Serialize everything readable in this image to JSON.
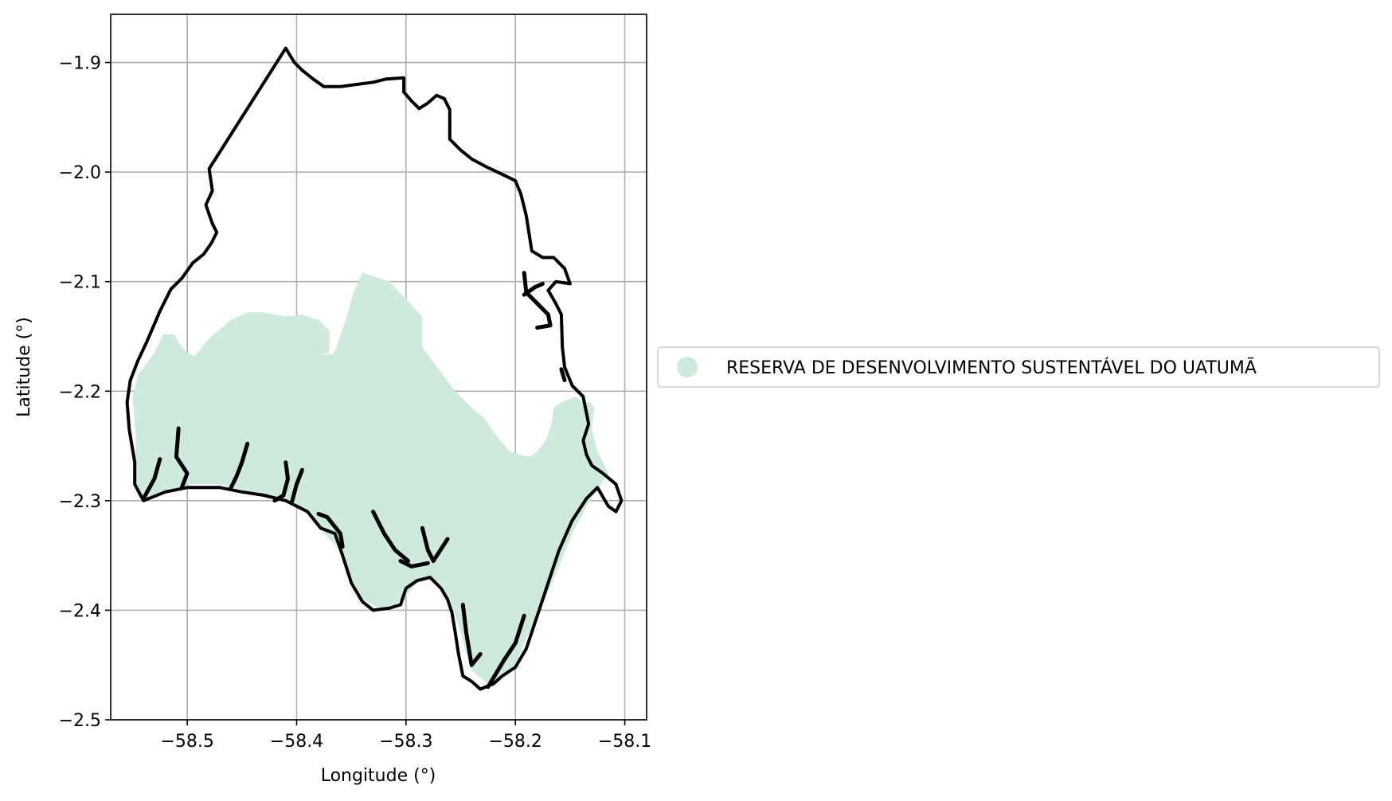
{
  "chart_data": {
    "type": "map",
    "xlabel": "Longitude (°)",
    "ylabel": "Latitude (°)",
    "xlim": [
      -58.57,
      -58.08
    ],
    "ylim": [
      -2.5,
      -1.856
    ],
    "xticks": [
      -58.5,
      -58.4,
      -58.3,
      -58.2,
      -58.1
    ],
    "xtick_labels": [
      "−58.5",
      "−58.4",
      "−58.3",
      "−58.2",
      "−58.1"
    ],
    "yticks": [
      -1.9,
      -2.0,
      -2.1,
      -2.2,
      -2.3,
      -2.4,
      -2.5
    ],
    "ytick_labels": [
      "−1.9",
      "−2.0",
      "−2.1",
      "−2.2",
      "−2.3",
      "−2.4",
      "−2.5"
    ],
    "grid": true,
    "legend_placement": "outside-right",
    "legend": [
      {
        "label": "RESERVA DE DESENVOLVIMENTO SUSTENTÁVEL DO UATUMÃ",
        "color": "#cfeadc"
      }
    ],
    "colors": {
      "reserve_fill": "#cfeadc",
      "boundary": "#000000",
      "grid": "#b0b0b0"
    },
    "reserve_polygon": [
      [
        -58.545,
        -2.185
      ],
      [
        -58.53,
        -2.165
      ],
      [
        -58.522,
        -2.148
      ],
      [
        -58.512,
        -2.148
      ],
      [
        -58.506,
        -2.158
      ],
      [
        -58.5,
        -2.165
      ],
      [
        -58.493,
        -2.168
      ],
      [
        -58.48,
        -2.152
      ],
      [
        -58.46,
        -2.135
      ],
      [
        -58.445,
        -2.128
      ],
      [
        -58.43,
        -2.128
      ],
      [
        -58.41,
        -2.132
      ],
      [
        -58.395,
        -2.13
      ],
      [
        -58.38,
        -2.135
      ],
      [
        -58.37,
        -2.145
      ],
      [
        -58.37,
        -2.165
      ],
      [
        -58.38,
        -2.167
      ],
      [
        -58.366,
        -2.166
      ],
      [
        -58.355,
        -2.135
      ],
      [
        -58.348,
        -2.11
      ],
      [
        -58.34,
        -2.092
      ],
      [
        -58.33,
        -2.095
      ],
      [
        -58.315,
        -2.1
      ],
      [
        -58.298,
        -2.118
      ],
      [
        -58.285,
        -2.132
      ],
      [
        -58.285,
        -2.16
      ],
      [
        -58.27,
        -2.18
      ],
      [
        -58.255,
        -2.2
      ],
      [
        -58.24,
        -2.215
      ],
      [
        -58.228,
        -2.225
      ],
      [
        -58.218,
        -2.24
      ],
      [
        -58.205,
        -2.255
      ],
      [
        -58.195,
        -2.258
      ],
      [
        -58.187,
        -2.26
      ],
      [
        -58.18,
        -2.255
      ],
      [
        -58.172,
        -2.245
      ],
      [
        -58.167,
        -2.23
      ],
      [
        -58.165,
        -2.215
      ],
      [
        -58.158,
        -2.21
      ],
      [
        -58.145,
        -2.205
      ],
      [
        -58.138,
        -2.21
      ],
      [
        -58.132,
        -2.21
      ],
      [
        -58.128,
        -2.215
      ],
      [
        -58.13,
        -2.235
      ],
      [
        -58.125,
        -2.255
      ],
      [
        -58.115,
        -2.275
      ],
      [
        -58.125,
        -2.29
      ],
      [
        -58.135,
        -2.305
      ],
      [
        -58.148,
        -2.33
      ],
      [
        -58.16,
        -2.36
      ],
      [
        -58.175,
        -2.395
      ],
      [
        -58.19,
        -2.425
      ],
      [
        -58.2,
        -2.45
      ],
      [
        -58.21,
        -2.46
      ],
      [
        -58.22,
        -2.47
      ],
      [
        -58.228,
        -2.465
      ],
      [
        -58.24,
        -2.455
      ],
      [
        -58.245,
        -2.44
      ],
      [
        -58.25,
        -2.42
      ],
      [
        -58.255,
        -2.405
      ],
      [
        -58.26,
        -2.39
      ],
      [
        -58.27,
        -2.375
      ],
      [
        -58.28,
        -2.37
      ],
      [
        -58.29,
        -2.375
      ],
      [
        -58.298,
        -2.385
      ],
      [
        -58.31,
        -2.395
      ],
      [
        -58.325,
        -2.398
      ],
      [
        -58.34,
        -2.39
      ],
      [
        -58.35,
        -2.37
      ],
      [
        -58.36,
        -2.345
      ],
      [
        -58.375,
        -2.33
      ],
      [
        -58.39,
        -2.31
      ],
      [
        -58.41,
        -2.3
      ],
      [
        -58.43,
        -2.295
      ],
      [
        -58.45,
        -2.29
      ],
      [
        -58.47,
        -2.285
      ],
      [
        -58.5,
        -2.285
      ],
      [
        -58.52,
        -2.292
      ],
      [
        -58.54,
        -2.298
      ],
      [
        -58.548,
        -2.28
      ],
      [
        -58.547,
        -2.24
      ],
      [
        -58.55,
        -2.205
      ],
      [
        -58.545,
        -2.185
      ]
    ],
    "boundary_outer": [
      [
        -58.48,
        -1.997
      ],
      [
        -58.41,
        -1.887
      ],
      [
        -58.402,
        -1.9
      ],
      [
        -58.395,
        -1.907
      ],
      [
        -58.385,
        -1.915
      ],
      [
        -58.375,
        -1.922
      ],
      [
        -58.36,
        -1.922
      ],
      [
        -58.345,
        -1.92
      ],
      [
        -58.33,
        -1.918
      ],
      [
        -58.318,
        -1.915
      ],
      [
        -58.302,
        -1.914
      ],
      [
        -58.302,
        -1.927
      ],
      [
        -58.295,
        -1.935
      ],
      [
        -58.288,
        -1.942
      ],
      [
        -58.28,
        -1.937
      ],
      [
        -58.272,
        -1.93
      ],
      [
        -58.265,
        -1.933
      ],
      [
        -58.26,
        -1.943
      ],
      [
        -58.26,
        -1.97
      ],
      [
        -58.25,
        -1.98
      ],
      [
        -58.24,
        -1.988
      ],
      [
        -58.225,
        -1.996
      ],
      [
        -58.212,
        -2.002
      ],
      [
        -58.2,
        -2.008
      ],
      [
        -58.195,
        -2.02
      ],
      [
        -58.19,
        -2.04
      ],
      [
        -58.185,
        -2.072
      ],
      [
        -58.175,
        -2.078
      ],
      [
        -58.165,
        -2.078
      ],
      [
        -58.155,
        -2.088
      ],
      [
        -58.15,
        -2.102
      ],
      [
        -58.163,
        -2.1
      ],
      [
        -58.17,
        -2.108
      ],
      [
        -58.163,
        -2.12
      ],
      [
        -58.158,
        -2.13
      ],
      [
        -58.157,
        -2.16
      ],
      [
        -58.155,
        -2.178
      ],
      [
        -58.148,
        -2.195
      ],
      [
        -58.138,
        -2.205
      ],
      [
        -58.133,
        -2.23
      ],
      [
        -58.138,
        -2.245
      ],
      [
        -58.135,
        -2.258
      ],
      [
        -58.13,
        -2.268
      ],
      [
        -58.12,
        -2.275
      ],
      [
        -58.108,
        -2.285
      ],
      [
        -58.103,
        -2.3
      ],
      [
        -58.108,
        -2.31
      ],
      [
        -58.115,
        -2.305
      ],
      [
        -58.125,
        -2.288
      ],
      [
        -58.135,
        -2.298
      ],
      [
        -58.148,
        -2.318
      ],
      [
        -58.16,
        -2.345
      ],
      [
        -58.17,
        -2.375
      ],
      [
        -58.18,
        -2.405
      ],
      [
        -58.19,
        -2.435
      ],
      [
        -58.2,
        -2.452
      ],
      [
        -58.212,
        -2.46
      ],
      [
        -58.22,
        -2.467
      ],
      [
        -58.232,
        -2.472
      ],
      [
        -58.24,
        -2.465
      ],
      [
        -58.248,
        -2.46
      ],
      [
        -58.252,
        -2.44
      ],
      [
        -58.255,
        -2.42
      ],
      [
        -58.258,
        -2.402
      ],
      [
        -58.262,
        -2.39
      ],
      [
        -58.268,
        -2.38
      ],
      [
        -58.278,
        -2.37
      ],
      [
        -58.29,
        -2.373
      ],
      [
        -58.3,
        -2.38
      ],
      [
        -58.305,
        -2.395
      ],
      [
        -58.315,
        -2.398
      ],
      [
        -58.33,
        -2.4
      ],
      [
        -58.34,
        -2.392
      ],
      [
        -58.35,
        -2.375
      ],
      [
        -58.358,
        -2.35
      ],
      [
        -58.365,
        -2.33
      ],
      [
        -58.378,
        -2.325
      ],
      [
        -58.39,
        -2.31
      ],
      [
        -58.41,
        -2.3
      ],
      [
        -58.43,
        -2.295
      ],
      [
        -58.45,
        -2.292
      ],
      [
        -58.47,
        -2.288
      ],
      [
        -58.5,
        -2.288
      ],
      [
        -58.52,
        -2.292
      ],
      [
        -58.54,
        -2.3
      ],
      [
        -58.548,
        -2.285
      ],
      [
        -58.548,
        -2.265
      ],
      [
        -58.553,
        -2.235
      ],
      [
        -58.555,
        -2.21
      ],
      [
        -58.552,
        -2.19
      ],
      [
        -58.545,
        -2.172
      ],
      [
        -58.537,
        -2.155
      ],
      [
        -58.525,
        -2.127
      ],
      [
        -58.515,
        -2.107
      ],
      [
        -58.505,
        -2.097
      ],
      [
        -58.495,
        -2.083
      ],
      [
        -58.485,
        -2.075
      ],
      [
        -58.478,
        -2.065
      ],
      [
        -58.473,
        -2.055
      ],
      [
        -58.477,
        -2.047
      ],
      [
        -58.483,
        -2.03
      ],
      [
        -58.477,
        -2.017
      ],
      [
        -58.48,
        -1.997
      ]
    ],
    "boundary_streams": [
      [
        [
          -58.508,
          -2.234
        ],
        [
          -58.51,
          -2.26
        ],
        [
          -58.5,
          -2.275
        ],
        [
          -58.505,
          -2.288
        ]
      ],
      [
        [
          -58.525,
          -2.262
        ],
        [
          -58.53,
          -2.28
        ],
        [
          -58.54,
          -2.298
        ]
      ],
      [
        [
          -58.445,
          -2.248
        ],
        [
          -58.45,
          -2.265
        ],
        [
          -58.455,
          -2.278
        ],
        [
          -58.46,
          -2.288
        ]
      ],
      [
        [
          -58.41,
          -2.265
        ],
        [
          -58.408,
          -2.28
        ],
        [
          -58.412,
          -2.295
        ],
        [
          -58.42,
          -2.3
        ]
      ],
      [
        [
          -58.395,
          -2.272
        ],
        [
          -58.4,
          -2.285
        ],
        [
          -58.404,
          -2.3
        ]
      ],
      [
        [
          -58.38,
          -2.312
        ],
        [
          -58.372,
          -2.315
        ],
        [
          -58.36,
          -2.33
        ],
        [
          -58.358,
          -2.342
        ]
      ],
      [
        [
          -58.33,
          -2.31
        ],
        [
          -58.32,
          -2.33
        ],
        [
          -58.31,
          -2.345
        ],
        [
          -58.298,
          -2.355
        ]
      ],
      [
        [
          -58.285,
          -2.325
        ],
        [
          -58.28,
          -2.345
        ],
        [
          -58.275,
          -2.355
        ],
        [
          -58.262,
          -2.335
        ]
      ],
      [
        [
          -58.305,
          -2.355
        ],
        [
          -58.295,
          -2.36
        ],
        [
          -58.28,
          -2.357
        ]
      ],
      [
        [
          -58.248,
          -2.395
        ],
        [
          -58.245,
          -2.42
        ],
        [
          -58.24,
          -2.45
        ],
        [
          -58.232,
          -2.44
        ]
      ],
      [
        [
          -58.192,
          -2.405
        ],
        [
          -58.2,
          -2.43
        ],
        [
          -58.21,
          -2.445
        ],
        [
          -58.225,
          -2.47
        ]
      ],
      [
        [
          -58.192,
          -2.092
        ],
        [
          -58.19,
          -2.11
        ],
        [
          -58.18,
          -2.12
        ],
        [
          -58.17,
          -2.13
        ],
        [
          -58.168,
          -2.14
        ],
        [
          -58.18,
          -2.142
        ]
      ],
      [
        [
          -58.192,
          -2.112
        ],
        [
          -58.182,
          -2.105
        ],
        [
          -58.175,
          -2.102
        ]
      ],
      [
        [
          -58.158,
          -2.18
        ],
        [
          -58.155,
          -2.19
        ]
      ]
    ]
  }
}
